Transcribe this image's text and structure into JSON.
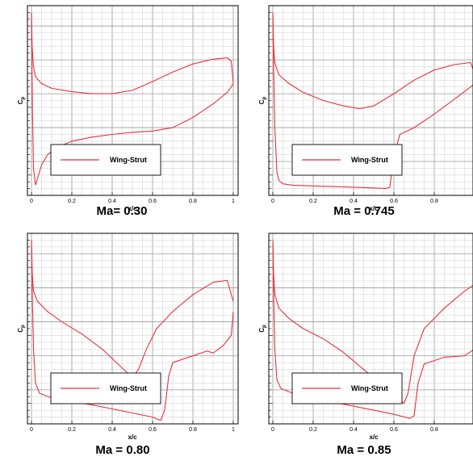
{
  "chart_data": [
    {
      "type": "line",
      "title": "Ma= 0.30",
      "xlabel": "x/c",
      "ylabel": "C",
      "ylabel_sub": "p",
      "xlim": [
        0,
        1
      ],
      "ylim": [
        1.2,
        -1.6
      ],
      "yticks_labeled": false,
      "xticks": [
        0,
        0.2,
        0.4,
        0.6,
        0.8,
        1
      ],
      "grid": true,
      "legend": {
        "placement": "bottom-left",
        "entries": [
          "Wing-Strut"
        ]
      },
      "series": [
        {
          "name": "Wing-Strut",
          "color": "#e8323c",
          "segments": [
            [
              [
                0,
                1.1
              ],
              [
                0.002,
                0.5
              ],
              [
                0.005,
                -0.4
              ],
              [
                0.01,
                -1.2
              ],
              [
                0.02,
                -1.45
              ],
              [
                0.03,
                -1.35
              ],
              [
                0.05,
                -1.15
              ],
              [
                0.08,
                -1.0
              ],
              [
                0.12,
                -0.9
              ],
              [
                0.2,
                -0.8
              ],
              [
                0.3,
                -0.74
              ],
              [
                0.4,
                -0.7
              ],
              [
                0.5,
                -0.67
              ],
              [
                0.6,
                -0.65
              ],
              [
                0.7,
                -0.6
              ],
              [
                0.8,
                -0.45
              ],
              [
                0.9,
                -0.25
              ],
              [
                0.97,
                -0.08
              ],
              [
                0.99,
                0.0
              ],
              [
                1.0,
                0.05
              ]
            ],
            [
              [
                0,
                1.1
              ],
              [
                0.003,
                0.6
              ],
              [
                0.01,
                0.3
              ],
              [
                0.02,
                0.15
              ],
              [
                0.05,
                0.05
              ],
              [
                0.1,
                -0.02
              ],
              [
                0.2,
                -0.07
              ],
              [
                0.3,
                -0.1
              ],
              [
                0.4,
                -0.1
              ],
              [
                0.5,
                -0.05
              ],
              [
                0.6,
                0.08
              ],
              [
                0.7,
                0.22
              ],
              [
                0.8,
                0.34
              ],
              [
                0.9,
                0.41
              ],
              [
                0.97,
                0.43
              ],
              [
                0.99,
                0.38
              ],
              [
                1.0,
                0.05
              ]
            ]
          ]
        }
      ]
    },
    {
      "type": "line",
      "title": "Ma = 0.745",
      "xlabel": "x/c",
      "ylabel": "C",
      "ylabel_sub": "p",
      "xlim": [
        0,
        1
      ],
      "ylim": [
        1.2,
        -1.6
      ],
      "yticks_labeled": false,
      "xticks": [
        0,
        0.2,
        0.4,
        0.6,
        0.8
      ],
      "grid": true,
      "legend": {
        "placement": "bottom-left",
        "entries": [
          "Wing-Strut"
        ]
      },
      "series": [
        {
          "name": "Wing-Strut",
          "color": "#e8323c",
          "segments": [
            [
              [
                0,
                1.1
              ],
              [
                0.003,
                0.4
              ],
              [
                0.01,
                -0.6
              ],
              [
                0.02,
                -1.25
              ],
              [
                0.03,
                -1.38
              ],
              [
                0.05,
                -1.43
              ],
              [
                0.1,
                -1.45
              ],
              [
                0.2,
                -1.46
              ],
              [
                0.3,
                -1.47
              ],
              [
                0.4,
                -1.48
              ],
              [
                0.5,
                -1.49
              ],
              [
                0.56,
                -1.5
              ],
              [
                0.58,
                -1.48
              ],
              [
                0.6,
                -1.0
              ],
              [
                0.63,
                -0.7
              ],
              [
                0.7,
                -0.6
              ],
              [
                0.8,
                -0.4
              ],
              [
                0.9,
                -0.18
              ],
              [
                0.98,
                0.0
              ],
              [
                1.0,
                0.05
              ]
            ],
            [
              [
                0,
                1.1
              ],
              [
                0.004,
                0.6
              ],
              [
                0.01,
                0.35
              ],
              [
                0.03,
                0.18
              ],
              [
                0.08,
                0.05
              ],
              [
                0.15,
                -0.08
              ],
              [
                0.25,
                -0.2
              ],
              [
                0.35,
                -0.28
              ],
              [
                0.43,
                -0.32
              ],
              [
                0.5,
                -0.28
              ],
              [
                0.6,
                -0.1
              ],
              [
                0.7,
                0.1
              ],
              [
                0.8,
                0.25
              ],
              [
                0.9,
                0.33
              ],
              [
                0.98,
                0.36
              ],
              [
                1.0,
                0.2
              ]
            ]
          ]
        }
      ]
    },
    {
      "type": "line",
      "title": "Ma = 0.80",
      "xlabel": "x/c",
      "ylabel": "C",
      "ylabel_sub": "p",
      "xlim": [
        0,
        1
      ],
      "ylim": [
        1.2,
        -1.6
      ],
      "yticks_labeled": false,
      "xticks": [
        0,
        0.2,
        0.4,
        0.6,
        0.8,
        1
      ],
      "grid": true,
      "legend": {
        "placement": "bottom-left",
        "entries": [
          "Wing-Strut"
        ]
      },
      "series": [
        {
          "name": "Wing-Strut",
          "color": "#e8323c",
          "segments": [
            [
              [
                0,
                1.1
              ],
              [
                0.003,
                0.4
              ],
              [
                0.01,
                -0.5
              ],
              [
                0.02,
                -1.0
              ],
              [
                0.04,
                -1.15
              ],
              [
                0.1,
                -1.22
              ],
              [
                0.2,
                -1.27
              ],
              [
                0.3,
                -1.32
              ],
              [
                0.4,
                -1.38
              ],
              [
                0.5,
                -1.44
              ],
              [
                0.6,
                -1.5
              ],
              [
                0.64,
                -1.55
              ],
              [
                0.66,
                -1.4
              ],
              [
                0.68,
                -0.9
              ],
              [
                0.7,
                -0.7
              ],
              [
                0.8,
                -0.6
              ],
              [
                0.87,
                -0.53
              ],
              [
                0.9,
                -0.56
              ],
              [
                0.95,
                -0.45
              ],
              [
                0.99,
                -0.3
              ],
              [
                1.0,
                0.05
              ]
            ],
            [
              [
                0,
                1.1
              ],
              [
                0.004,
                0.6
              ],
              [
                0.01,
                0.35
              ],
              [
                0.03,
                0.2
              ],
              [
                0.08,
                0.05
              ],
              [
                0.15,
                -0.1
              ],
              [
                0.25,
                -0.28
              ],
              [
                0.35,
                -0.5
              ],
              [
                0.45,
                -0.78
              ],
              [
                0.5,
                -0.92
              ],
              [
                0.53,
                -0.8
              ],
              [
                0.57,
                -0.5
              ],
              [
                0.62,
                -0.2
              ],
              [
                0.7,
                0.05
              ],
              [
                0.8,
                0.3
              ],
              [
                0.9,
                0.48
              ],
              [
                0.97,
                0.51
              ],
              [
                1.0,
                0.2
              ]
            ]
          ]
        }
      ]
    },
    {
      "type": "line",
      "title": "Ma = 0.85",
      "xlabel": "x/c",
      "ylabel": "C",
      "ylabel_sub": "p",
      "xlim": [
        0,
        1
      ],
      "ylim": [
        1.2,
        -1.6
      ],
      "yticks_labeled": false,
      "xticks": [
        0,
        0.2,
        0.4,
        0.6,
        0.8
      ],
      "grid": true,
      "legend": {
        "placement": "bottom-left",
        "entries": [
          "Wing-Strut"
        ]
      },
      "series": [
        {
          "name": "Wing-Strut",
          "color": "#e8323c",
          "segments": [
            [
              [
                0,
                1.1
              ],
              [
                0.003,
                0.4
              ],
              [
                0.01,
                -0.5
              ],
              [
                0.02,
                -0.95
              ],
              [
                0.04,
                -1.08
              ],
              [
                0.1,
                -1.15
              ],
              [
                0.2,
                -1.22
              ],
              [
                0.3,
                -1.28
              ],
              [
                0.4,
                -1.34
              ],
              [
                0.5,
                -1.4
              ],
              [
                0.6,
                -1.46
              ],
              [
                0.68,
                -1.52
              ],
              [
                0.7,
                -1.48
              ],
              [
                0.72,
                -1.0
              ],
              [
                0.75,
                -0.72
              ],
              [
                0.85,
                -0.62
              ],
              [
                0.95,
                -0.6
              ],
              [
                1.0,
                -0.5
              ]
            ],
            [
              [
                0,
                1.1
              ],
              [
                0.004,
                0.6
              ],
              [
                0.01,
                0.3
              ],
              [
                0.03,
                0.1
              ],
              [
                0.08,
                -0.05
              ],
              [
                0.15,
                -0.2
              ],
              [
                0.25,
                -0.35
              ],
              [
                0.35,
                -0.55
              ],
              [
                0.45,
                -0.8
              ],
              [
                0.55,
                -1.05
              ],
              [
                0.62,
                -1.23
              ],
              [
                0.65,
                -1.3
              ],
              [
                0.67,
                -1.15
              ],
              [
                0.7,
                -0.6
              ],
              [
                0.75,
                -0.2
              ],
              [
                0.85,
                0.1
              ],
              [
                0.95,
                0.35
              ],
              [
                1.0,
                0.45
              ]
            ]
          ]
        }
      ]
    }
  ]
}
